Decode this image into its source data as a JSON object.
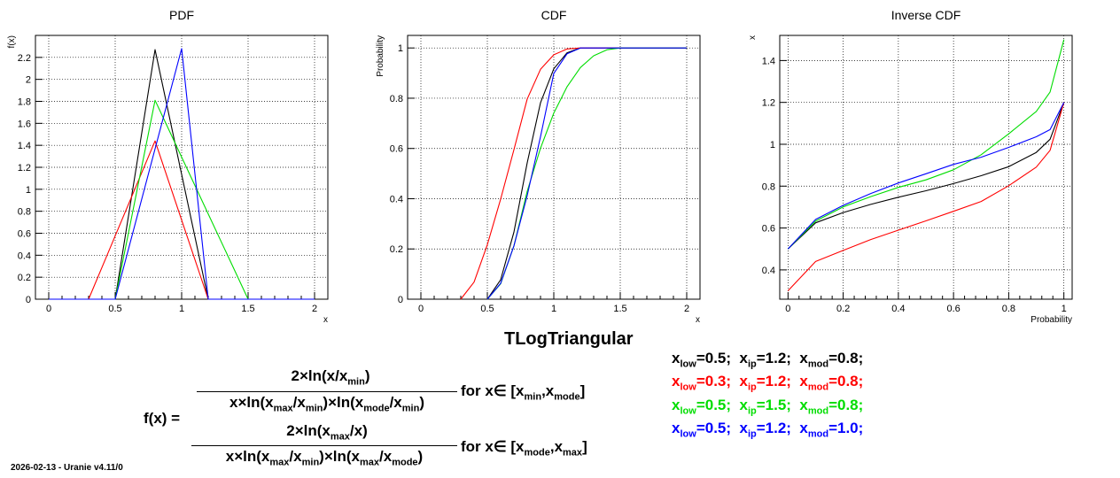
{
  "footer": "2026-02-13 - Uranie v4.11/0",
  "main_title": "TLogTriangular",
  "formula": {
    "lhs": "f(x) =",
    "case1": {
      "num": "2×ln(x/x_min)",
      "den": "x×ln(x_max/x_min)×ln(x_mode/x_min)",
      "cond": "for x∈ [x_min,x_mode]"
    },
    "case2": {
      "num": "2×ln(x_max/x)",
      "den": "x×ln(x_max/x_min)×ln(x_max/x_mode)",
      "cond": "for x∈  [x_mode,x_max]"
    }
  },
  "params": [
    {
      "color": "#000000",
      "low": "0.5",
      "ip": "1.2",
      "mod": "0.8"
    },
    {
      "color": "#ff0000",
      "low": "0.3",
      "ip": "1.2",
      "mod": "0.8"
    },
    {
      "color": "#00dd00",
      "low": "0.5",
      "ip": "1.5",
      "mod": "0.8"
    },
    {
      "color": "#0000ff",
      "low": "0.5",
      "ip": "1.2",
      "mod": "1.0"
    }
  ],
  "chart_data": [
    {
      "type": "line",
      "title": "PDF",
      "xlabel": "x",
      "ylabel": "f(x)",
      "xlim": [
        -0.1,
        2.1
      ],
      "ylim": [
        0,
        2.4
      ],
      "xticks": [
        "0",
        "0.5",
        "1",
        "1.5",
        "2"
      ],
      "yticks": [
        "0",
        "0.2",
        "0.4",
        "0.6",
        "0.8",
        "1",
        "1.2",
        "1.4",
        "1.6",
        "1.8",
        "2",
        "2.2"
      ],
      "grid": true,
      "series": [
        {
          "color": "#000000",
          "x": [
            0,
            0.5,
            0.8,
            1.2,
            2
          ],
          "y": [
            0,
            0,
            2.27,
            0,
            0
          ]
        },
        {
          "color": "#ff0000",
          "x": [
            0,
            0.3,
            0.8,
            1.2,
            2
          ],
          "y": [
            0,
            0,
            1.44,
            0,
            0
          ]
        },
        {
          "color": "#00dd00",
          "x": [
            0,
            0.5,
            0.8,
            1.5,
            2
          ],
          "y": [
            0,
            0,
            1.81,
            0,
            0
          ]
        },
        {
          "color": "#0000ff",
          "x": [
            0,
            0.5,
            1.0,
            1.2,
            2
          ],
          "y": [
            0,
            0,
            2.28,
            0,
            0
          ]
        }
      ]
    },
    {
      "type": "line",
      "title": "CDF",
      "xlabel": "x",
      "ylabel": "Probability",
      "xlim": [
        -0.1,
        2.1
      ],
      "ylim": [
        0,
        1.05
      ],
      "xticks": [
        "0",
        "0.5",
        "1",
        "1.5",
        "2"
      ],
      "yticks": [
        "0",
        "0.2",
        "0.4",
        "0.6",
        "0.8",
        "1"
      ],
      "grid": true,
      "series": [
        {
          "color": "#000000",
          "x": [
            0.5,
            0.6,
            0.7,
            0.8,
            0.9,
            1.0,
            1.1,
            1.2,
            2.0
          ],
          "y": [
            0,
            0.077,
            0.267,
            0.543,
            0.782,
            0.917,
            0.981,
            1,
            1
          ]
        },
        {
          "color": "#ff0000",
          "x": [
            0.3,
            0.4,
            0.5,
            0.6,
            0.7,
            0.8,
            0.9,
            1.0,
            1.1,
            1.2,
            2.0
          ],
          "y": [
            0,
            0.068,
            0.217,
            0.398,
            0.595,
            0.797,
            0.915,
            0.973,
            0.996,
            1,
            1
          ]
        },
        {
          "color": "#00dd00",
          "x": [
            0.5,
            0.6,
            0.7,
            0.8,
            0.9,
            1.0,
            1.1,
            1.2,
            1.3,
            1.4,
            1.5,
            2.0
          ],
          "y": [
            0,
            0.061,
            0.212,
            0.43,
            0.601,
            0.741,
            0.846,
            0.922,
            0.969,
            0.993,
            1,
            1
          ]
        },
        {
          "color": "#0000ff",
          "x": [
            0.5,
            0.6,
            0.7,
            0.8,
            0.9,
            1.0,
            1.1,
            1.2,
            2.0
          ],
          "y": [
            0,
            0.063,
            0.212,
            0.413,
            0.647,
            0.899,
            0.977,
            1,
            1
          ]
        }
      ]
    },
    {
      "type": "line",
      "title": "Inverse CDF",
      "xlabel": "Probability",
      "ylabel": "x",
      "xlim": [
        -0.03,
        1.03
      ],
      "ylim": [
        0.26,
        1.52
      ],
      "xticks": [
        "0",
        "0.2",
        "0.4",
        "0.6",
        "0.8",
        "1"
      ],
      "yticks": [
        "0.4",
        "0.6",
        "0.8",
        "1",
        "1.2",
        "1.4"
      ],
      "grid": true,
      "series": [
        {
          "color": "#000000",
          "x": [
            0,
            0.1,
            0.2,
            0.3,
            0.4,
            0.5,
            0.6,
            0.7,
            0.8,
            0.9,
            0.95,
            1.0
          ],
          "y": [
            0.5,
            0.625,
            0.674,
            0.713,
            0.747,
            0.778,
            0.812,
            0.85,
            0.893,
            0.961,
            1.024,
            1.2
          ]
        },
        {
          "color": "#ff0000",
          "x": [
            0,
            0.1,
            0.2,
            0.3,
            0.4,
            0.5,
            0.6,
            0.7,
            0.8,
            0.9,
            0.95,
            1.0
          ],
          "y": [
            0.3,
            0.44,
            0.493,
            0.545,
            0.59,
            0.634,
            0.68,
            0.727,
            0.802,
            0.891,
            0.971,
            1.2
          ]
        },
        {
          "color": "#00dd00",
          "x": [
            0,
            0.1,
            0.2,
            0.3,
            0.4,
            0.5,
            0.6,
            0.7,
            0.8,
            0.9,
            0.95,
            1.0
          ],
          "y": [
            0.5,
            0.633,
            0.701,
            0.75,
            0.794,
            0.83,
            0.878,
            0.95,
            1.05,
            1.157,
            1.25,
            1.5
          ]
        },
        {
          "color": "#0000ff",
          "x": [
            0,
            0.1,
            0.2,
            0.3,
            0.4,
            0.5,
            0.6,
            0.7,
            0.8,
            0.9,
            0.95,
            1.0
          ],
          "y": [
            0.5,
            0.641,
            0.708,
            0.765,
            0.815,
            0.859,
            0.904,
            0.938,
            0.985,
            1.036,
            1.07,
            1.2
          ]
        }
      ]
    }
  ]
}
